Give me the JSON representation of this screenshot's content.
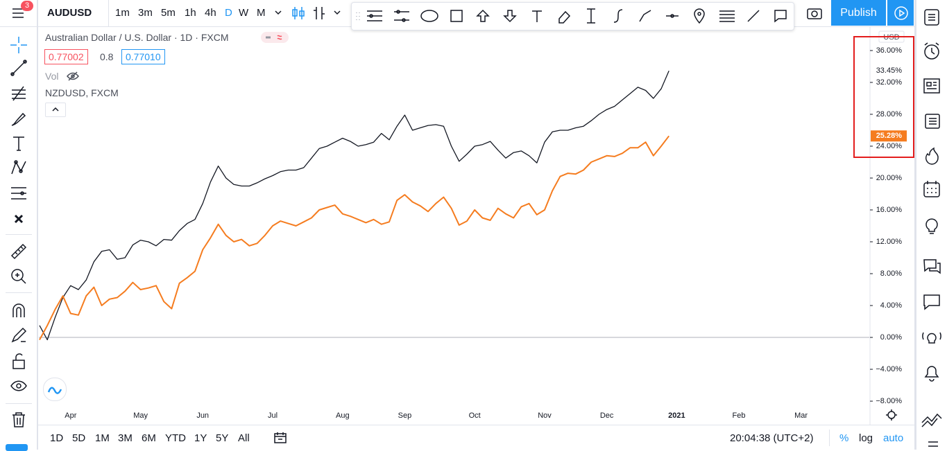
{
  "top_bar": {
    "symbol": "AUDUSD",
    "badge": "3",
    "intervals": [
      "1m",
      "3m",
      "5m",
      "1h",
      "4h",
      "D",
      "W",
      "M"
    ],
    "publish": "Publish"
  },
  "legend": {
    "title": "Australian Dollar / U.S. Dollar · 1D · FXCM",
    "open": "0.77002",
    "change": "0.8",
    "close": "0.77010",
    "volume": "Vol",
    "compare": "NZDUSD, FXCM"
  },
  "axis_currency": "USD",
  "bottom_bar": {
    "ranges": [
      "1D",
      "5D",
      "1M",
      "3M",
      "6M",
      "YTD",
      "1Y",
      "5Y",
      "All"
    ],
    "clock": "20:04:38 (UTC+2)",
    "percent": "%",
    "log": "log",
    "auto": "auto"
  },
  "chart_data": {
    "type": "line",
    "categories": [
      null,
      null,
      null,
      null,
      "Apr",
      null,
      null,
      null,
      null,
      null,
      null,
      null,
      null,
      "May",
      null,
      null,
      null,
      null,
      null,
      null,
      null,
      "Jun",
      null,
      null,
      null,
      null,
      null,
      null,
      null,
      null,
      "Jul",
      null,
      null,
      null,
      null,
      null,
      null,
      null,
      null,
      "Aug",
      null,
      null,
      null,
      null,
      null,
      null,
      null,
      "Sep",
      null,
      null,
      null,
      null,
      null,
      null,
      null,
      null,
      "Oct",
      null,
      null,
      null,
      null,
      null,
      null,
      null,
      null,
      "Nov",
      null,
      null,
      null,
      null,
      null,
      null,
      null,
      "Dec",
      null,
      null,
      null,
      null,
      null,
      null,
      null,
      null,
      "2021",
      null,
      null,
      null,
      null,
      null,
      null,
      null,
      "Feb",
      null,
      null,
      null,
      null,
      null,
      null,
      null,
      "Mar"
    ],
    "series": [
      {
        "color": "#131722",
        "values": [
          1.5,
          -0.3,
          2.5,
          5.0,
          6.5,
          6.0,
          7.2,
          9.5,
          10.8,
          11.0,
          9.8,
          10.0,
          11.6,
          12.2,
          12.0,
          11.5,
          12.3,
          12.2,
          13.4,
          14.3,
          14.8,
          16.8,
          19.5,
          21.5,
          20.0,
          19.2,
          19.0,
          19.0,
          19.4,
          19.9,
          20.3,
          20.8,
          21.0,
          21.0,
          21.3,
          22.5,
          23.7,
          24.0,
          24.5,
          25.0,
          24.6,
          24.0,
          24.2,
          24.5,
          25.6,
          24.8,
          26.5,
          27.9,
          26.0,
          26.3,
          26.6,
          26.7,
          26.5,
          24.0,
          22.1,
          23.0,
          24.0,
          24.2,
          24.6,
          23.5,
          22.5,
          23.2,
          23.4,
          22.8,
          21.9,
          24.5,
          25.8,
          26.0,
          26.0,
          26.3,
          26.5,
          27.2,
          28.0,
          28.6,
          29.0,
          29.8,
          30.6,
          31.4,
          31.0,
          30.0,
          31.2,
          33.45,
          null,
          null,
          null,
          null,
          null,
          null,
          null,
          null,
          null,
          null,
          null,
          null,
          null,
          null,
          null,
          null,
          null
        ]
      },
      {
        "color": "#f57c1f",
        "values": [
          -0.3,
          1.5,
          3.5,
          5.2,
          3.0,
          2.8,
          5.2,
          6.3,
          4.0,
          4.8,
          5.0,
          5.8,
          6.9,
          6.0,
          6.2,
          6.5,
          4.5,
          3.6,
          6.8,
          7.5,
          8.3,
          11.0,
          12.5,
          14.2,
          12.8,
          12.0,
          12.3,
          11.5,
          11.8,
          12.8,
          14.0,
          14.6,
          14.3,
          14.0,
          14.5,
          15.0,
          16.0,
          16.3,
          16.6,
          15.5,
          15.2,
          14.8,
          14.4,
          14.8,
          14.2,
          14.5,
          17.2,
          17.9,
          17.0,
          16.5,
          15.8,
          16.8,
          17.6,
          16.2,
          14.1,
          14.6,
          16.0,
          15.0,
          14.7,
          16.2,
          15.5,
          15.0,
          16.4,
          16.8,
          15.4,
          16.0,
          18.4,
          20.2,
          20.6,
          20.5,
          21.0,
          22.0,
          22.4,
          22.8,
          22.7,
          23.1,
          23.8,
          23.8,
          24.5,
          22.8,
          24.0,
          25.28,
          null,
          null,
          null,
          null,
          null,
          null,
          null,
          null,
          null,
          null,
          null,
          null,
          null,
          null,
          null,
          null,
          null
        ]
      }
    ],
    "price_labels": [
      {
        "value": 33.45,
        "label": "33.45%"
      },
      {
        "value": 25.28,
        "label": "25.28%"
      }
    ],
    "ylim": [
      -8.43,
      38.43
    ],
    "yticks": [
      {
        "value": 36,
        "label": "36.00%"
      },
      {
        "value": 32,
        "label": "32.00%"
      },
      {
        "value": 28,
        "label": "28.00%"
      },
      {
        "value": 24,
        "label": "24.00%"
      },
      {
        "value": 20,
        "label": "20.00%"
      },
      {
        "value": 16,
        "label": "16.00%"
      },
      {
        "value": 12,
        "label": "12.00%"
      },
      {
        "value": 8,
        "label": "8.00%"
      },
      {
        "value": 4,
        "label": "4.00%"
      },
      {
        "value": 0,
        "label": "0.00%"
      },
      {
        "value": -4,
        "label": "−4.00%"
      },
      {
        "value": -8,
        "label": "−8.00%"
      }
    ],
    "zero_line": true
  }
}
